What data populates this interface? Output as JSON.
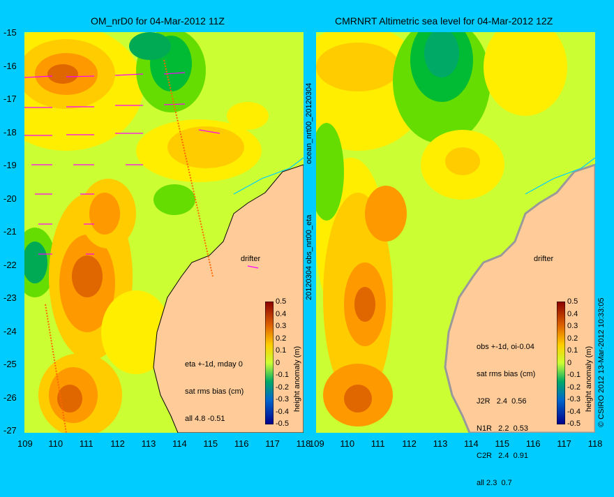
{
  "left_panel": {
    "title": "OM_nrD0 for 04-Mar-2012 11Z",
    "drifter_label": "drifter",
    "stats": [
      "eta +-1d, mday 0",
      "sat rms bias (cm)",
      "all 4.8 -0.51"
    ]
  },
  "right_panel": {
    "title": "CMRNRT Altimetric sea level  for 04-Mar-2012 12Z",
    "drifter_label": "drifter",
    "stats": [
      "obs +-1d, oi-0.04",
      "sat rms bias (cm)",
      "J2R   2.4  0.56",
      "N1R   2.2  0.53",
      "C2R   2.4  0.91",
      "all 2.3  0.7"
    ]
  },
  "side_labels": {
    "middle_top": "ocean_nrt00_20120304",
    "middle_bottom": "20120304 obs_nrt00_eta",
    "right_edge": "© CSIRO 2012  13-Mar-2012 10:33:05"
  },
  "colorbar": {
    "label": "height anomaly (m)",
    "ticks": [
      "0.5",
      "0.4",
      "0.3",
      "0.2",
      "0.1",
      "0",
      "-0.1",
      "-0.2",
      "-0.3",
      "-0.4",
      "-0.5"
    ]
  },
  "axes": {
    "lat_labels": [
      "-15",
      "-16",
      "-17",
      "-18",
      "-19",
      "-20",
      "-21",
      "-22",
      "-23",
      "-24",
      "-25",
      "-26",
      "-27"
    ],
    "lon_left": [
      "109",
      "110",
      "111",
      "112",
      "113",
      "114",
      "115",
      "116",
      "117",
      "118"
    ],
    "lon_right": [
      "109",
      "110",
      "111",
      "112",
      "113",
      "114",
      "115",
      "116",
      "117",
      "118"
    ]
  },
  "colors": {
    "background": "#00ccff",
    "land": "#ffcc99",
    "coast_line": "#00ccff",
    "vectors": "#ff00ff"
  }
}
